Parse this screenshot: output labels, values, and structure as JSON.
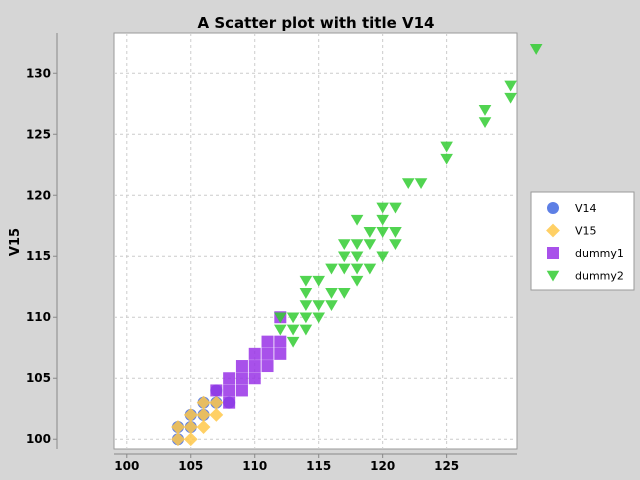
{
  "chart_data": {
    "type": "scatter",
    "title": "A Scatter plot with title V14",
    "xlabel": "",
    "ylabel": "V15",
    "xlim": [
      99,
      130.5
    ],
    "ylim": [
      99.2,
      133.3
    ],
    "x_ticks": [
      100,
      105,
      110,
      115,
      120,
      125
    ],
    "y_ticks": [
      100,
      105,
      110,
      115,
      120,
      125,
      130
    ],
    "grid": true,
    "legend_position": "right",
    "series": [
      {
        "name": "V14",
        "marker": "circle",
        "color": "#4169e1",
        "points": [
          [
            104,
            100
          ],
          [
            104,
            101
          ],
          [
            105,
            101
          ],
          [
            105,
            102
          ],
          [
            106,
            102
          ],
          [
            106,
            103
          ],
          [
            107,
            103
          ],
          [
            107,
            104
          ],
          [
            108,
            103
          ]
        ]
      },
      {
        "name": "V15",
        "marker": "diamond",
        "color": "#ffc84a",
        "points": [
          [
            104,
            100
          ],
          [
            104,
            101
          ],
          [
            105,
            100
          ],
          [
            105,
            101
          ],
          [
            105,
            102
          ],
          [
            106,
            101
          ],
          [
            106,
            102
          ],
          [
            106,
            103
          ],
          [
            107,
            102
          ],
          [
            107,
            103
          ]
        ]
      },
      {
        "name": "dummy1",
        "marker": "square",
        "color": "#9932e6",
        "points": [
          [
            107,
            104
          ],
          [
            108,
            103
          ],
          [
            108,
            104
          ],
          [
            108,
            105
          ],
          [
            109,
            104
          ],
          [
            109,
            105
          ],
          [
            109,
            106
          ],
          [
            110,
            105
          ],
          [
            110,
            106
          ],
          [
            110,
            107
          ],
          [
            111,
            106
          ],
          [
            111,
            107
          ],
          [
            111,
            108
          ],
          [
            112,
            107
          ],
          [
            112,
            108
          ],
          [
            112,
            110
          ]
        ]
      },
      {
        "name": "dummy2",
        "marker": "triangle-down",
        "color": "#32cd32",
        "points": [
          [
            112,
            109
          ],
          [
            112,
            110
          ],
          [
            113,
            108
          ],
          [
            113,
            109
          ],
          [
            113,
            110
          ],
          [
            114,
            109
          ],
          [
            114,
            110
          ],
          [
            114,
            111
          ],
          [
            114,
            112
          ],
          [
            114,
            113
          ],
          [
            115,
            110
          ],
          [
            115,
            111
          ],
          [
            115,
            113
          ],
          [
            116,
            111
          ],
          [
            116,
            112
          ],
          [
            116,
            114
          ],
          [
            117,
            112
          ],
          [
            117,
            114
          ],
          [
            117,
            115
          ],
          [
            117,
            116
          ],
          [
            118,
            113
          ],
          [
            118,
            114
          ],
          [
            118,
            115
          ],
          [
            118,
            116
          ],
          [
            118,
            118
          ],
          [
            119,
            114
          ],
          [
            119,
            116
          ],
          [
            119,
            117
          ],
          [
            120,
            115
          ],
          [
            120,
            117
          ],
          [
            120,
            118
          ],
          [
            120,
            119
          ],
          [
            121,
            116
          ],
          [
            121,
            117
          ],
          [
            121,
            119
          ],
          [
            122,
            121
          ],
          [
            123,
            121
          ],
          [
            125,
            123
          ],
          [
            125,
            124
          ],
          [
            128,
            126
          ],
          [
            128,
            127
          ],
          [
            130,
            128
          ],
          [
            130,
            129
          ],
          [
            132,
            132
          ]
        ]
      }
    ]
  }
}
